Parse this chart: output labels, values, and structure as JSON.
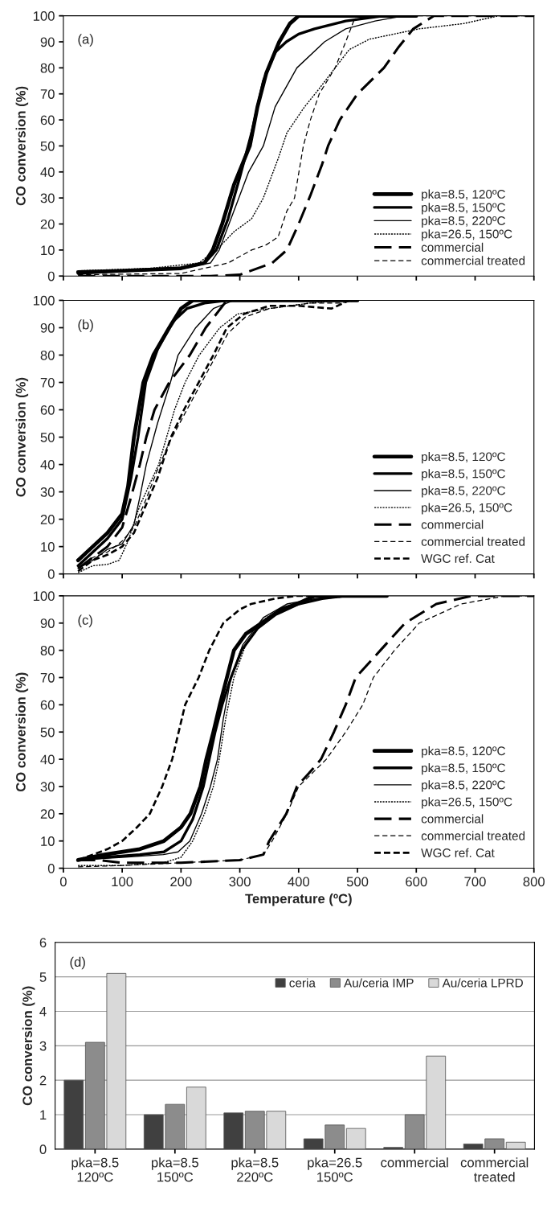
{
  "chart_data": [
    {
      "type": "line",
      "annotations": [
        "(a)"
      ],
      "ylabel": "CO conversion (%)",
      "xlim": [
        0,
        800
      ],
      "xticks": [
        0,
        100,
        200,
        300,
        400,
        500,
        600,
        700,
        800
      ],
      "ylim": [
        0,
        100
      ],
      "yticks": [
        0,
        10,
        20,
        30,
        40,
        50,
        60,
        70,
        80,
        90,
        100
      ],
      "tick_labels": "y",
      "legend": "bottom right",
      "grid": false,
      "series": [
        {
          "name": "pka=8.5, 120ºC",
          "color": "#000000",
          "line_style": "solid",
          "x": [
            25,
            100,
            200,
            240,
            254,
            270,
            290,
            317,
            330,
            345,
            367,
            385,
            400,
            600
          ],
          "values": [
            1.5,
            2,
            3,
            5,
            10,
            20,
            35,
            50,
            65,
            78,
            90,
            97,
            100,
            100
          ]
        },
        {
          "name": "pka=8.5, 150ºC",
          "color": "#000000",
          "line_style": "solid",
          "x": [
            25,
            100,
            200,
            240,
            260,
            280,
            300,
            320,
            340,
            360,
            379,
            400,
            427,
            480,
            545,
            600
          ],
          "values": [
            1,
            2,
            3,
            5,
            10,
            22,
            38,
            55,
            75,
            86,
            90,
            93,
            95,
            98,
            100,
            100
          ]
        },
        {
          "name": "pka=8.5, 220ºC",
          "color": "#000000",
          "line_style": "solid",
          "x": [
            25,
            100,
            200,
            250,
            265,
            290,
            315,
            340,
            360,
            397,
            444,
            480,
            530,
            580
          ],
          "values": [
            1.5,
            2,
            3,
            5,
            10,
            25,
            40,
            50,
            65,
            80,
            90,
            95,
            98,
            100
          ]
        },
        {
          "name": "pka=26.5, 150ºC",
          "color": "#000000",
          "line_style": "dotted",
          "x": [
            25,
            150,
            230,
            260,
            290,
            320,
            340,
            365,
            380,
            410,
            435,
            462,
            486,
            520,
            605,
            680,
            740,
            800
          ],
          "values": [
            2,
            3,
            5,
            10,
            17,
            22,
            30,
            45,
            55,
            65,
            72,
            80,
            87,
            91,
            95,
            97,
            100,
            100
          ]
        },
        {
          "name": "commercial",
          "color": "#000000",
          "line_style": "dashed",
          "x": [
            25,
            250,
            300,
            355,
            380,
            400,
            420,
            440,
            450,
            470,
            500,
            545,
            570,
            595,
            630,
            800
          ],
          "values": [
            0,
            0,
            0.5,
            5,
            10,
            20,
            31,
            43,
            50,
            60,
            70,
            80,
            88,
            95,
            100,
            100
          ]
        },
        {
          "name": "commercial treated",
          "color": "#000000",
          "line_style": "dashed",
          "x": [
            25,
            200,
            280,
            320,
            345,
            365,
            380,
            393,
            408,
            420,
            435,
            462,
            480,
            497,
            800
          ],
          "values": [
            0.5,
            1,
            5,
            10,
            12,
            15,
            25,
            30,
            50,
            60,
            70,
            80,
            90,
            100,
            100
          ]
        }
      ]
    },
    {
      "type": "line",
      "annotations": [
        "(b)"
      ],
      "ylabel": "CO conversion (%)",
      "xlim": [
        0,
        800
      ],
      "xticks": [
        0,
        100,
        200,
        300,
        400,
        500,
        600,
        700,
        800
      ],
      "ylim": [
        0,
        100
      ],
      "yticks": [
        0,
        10,
        20,
        30,
        40,
        50,
        60,
        70,
        80,
        90,
        100
      ],
      "tick_labels": "y",
      "legend": "bottom right",
      "grid": false,
      "series": [
        {
          "name": "pka=8.5, 120ºC",
          "color": "#000000",
          "line_style": "solid",
          "x": [
            25,
            50,
            75,
            100,
            110,
            120,
            136,
            153,
            180,
            200,
            220,
            500
          ],
          "values": [
            5,
            10,
            15,
            22,
            32,
            50,
            70,
            80,
            90,
            97,
            100,
            100
          ]
        },
        {
          "name": "pka=8.5, 150ºC",
          "color": "#000000",
          "line_style": "solid",
          "x": [
            25,
            50,
            75,
            100,
            115,
            127,
            140,
            160,
            185,
            210,
            240,
            280,
            500
          ],
          "values": [
            3,
            8,
            13,
            20,
            35,
            50,
            70,
            82,
            92,
            97,
            99,
            100,
            100
          ]
        },
        {
          "name": "pka=8.5, 220ºC",
          "color": "#000000",
          "line_style": "solid",
          "x": [
            25,
            50,
            75,
            100,
            120,
            130,
            141,
            160,
            182,
            195,
            225,
            255,
            290,
            500
          ],
          "values": [
            2,
            5,
            9,
            11,
            18,
            28,
            40,
            55,
            70,
            80,
            90,
            97,
            100,
            100
          ]
        },
        {
          "name": "pka=26.5, 150ºC",
          "color": "#000000",
          "line_style": "dotted",
          "x": [
            25,
            50,
            75,
            95,
            110,
            130,
            162,
            189,
            207,
            231,
            266,
            296,
            350,
            420,
            470,
            500
          ],
          "values": [
            0.5,
            3,
            3.5,
            5,
            12,
            25,
            40,
            60,
            70,
            80,
            90,
            95,
            97,
            99,
            100,
            100
          ]
        },
        {
          "name": "commercial",
          "color": "#000000",
          "line_style": "dashed",
          "x": [
            25,
            50,
            75,
            100,
            115,
            130,
            141,
            155,
            180,
            215,
            242,
            278,
            500
          ],
          "values": [
            2,
            6,
            10,
            17,
            28,
            40,
            50,
            60,
            70,
            80,
            90,
            100,
            100
          ]
        },
        {
          "name": "commercial treated",
          "color": "#000000",
          "line_style": "dashed",
          "x": [
            25,
            50,
            75,
            100,
            120,
            140,
            160,
            180,
            205,
            230,
            255,
            280,
            310,
            350,
            420,
            470,
            500
          ],
          "values": [
            2,
            6,
            8,
            12,
            17,
            27,
            38,
            48,
            58,
            68,
            78,
            88,
            94,
            97,
            99,
            99,
            100
          ]
        },
        {
          "name": "WGC ref. Cat",
          "color": "#000000",
          "line_style": "dashed",
          "x": [
            25,
            50,
            75,
            100,
            120,
            140,
            160,
            183,
            205,
            230,
            255,
            278,
            307,
            350,
            400,
            456,
            486,
            500
          ],
          "values": [
            1,
            5,
            7,
            10,
            15,
            25,
            35,
            50,
            60,
            70,
            80,
            90,
            95,
            98,
            98,
            97,
            100,
            100
          ]
        }
      ]
    },
    {
      "type": "line",
      "annotations": [
        "(c)"
      ],
      "xlabel": "Temperature (ºC)",
      "ylabel": "CO conversion (%)",
      "xlim": [
        0,
        800
      ],
      "xticks": [
        0,
        100,
        200,
        300,
        400,
        500,
        600,
        700,
        800
      ],
      "ylim": [
        0,
        100
      ],
      "yticks": [
        0,
        10,
        20,
        30,
        40,
        50,
        60,
        70,
        80,
        90,
        100
      ],
      "legend": "bottom right",
      "grid": false,
      "series": [
        {
          "name": "pka=8.5, 120ºC",
          "color": "#000000",
          "line_style": "solid",
          "x": [
            25,
            70,
            130,
            171,
            200,
            216,
            233,
            243,
            255,
            266,
            278,
            290,
            310,
            337,
            370,
            397,
            427,
            550
          ],
          "values": [
            3,
            5,
            7,
            10,
            15,
            20,
            30,
            40,
            50,
            60,
            70,
            80,
            86,
            90,
            95,
            97,
            100,
            100
          ]
        },
        {
          "name": "pka=8.5, 150ºC",
          "color": "#000000",
          "line_style": "solid",
          "x": [
            25,
            70,
            130,
            171,
            200,
            220,
            238,
            248,
            258,
            270,
            285,
            303,
            330,
            360,
            400,
            440,
            480,
            550
          ],
          "values": [
            3,
            4,
            5,
            6,
            10,
            18,
            30,
            40,
            50,
            60,
            70,
            80,
            88,
            93,
            97,
            99,
            100,
            100
          ]
        },
        {
          "name": "pka=8.5, 220ºC",
          "color": "#000000",
          "line_style": "solid",
          "x": [
            25,
            100,
            170,
            195,
            215,
            235,
            250,
            262,
            272,
            285,
            305,
            340,
            380,
            430,
            480,
            550
          ],
          "values": [
            3,
            4,
            5,
            6,
            10,
            20,
            30,
            40,
            55,
            70,
            82,
            92,
            97,
            99,
            100,
            100
          ]
        },
        {
          "name": "pka=26.5, 150ºC",
          "color": "#000000",
          "line_style": "dotted",
          "x": [
            25,
            100,
            170,
            200,
            220,
            240,
            255,
            265,
            276,
            290,
            310,
            345,
            390,
            440,
            500,
            550
          ],
          "values": [
            1,
            1,
            2,
            4,
            10,
            20,
            30,
            40,
            55,
            70,
            82,
            92,
            97,
            99,
            100,
            100
          ]
        },
        {
          "name": "commercial",
          "color": "#000000",
          "line_style": "dashed",
          "x": [
            25,
            60,
            100,
            200,
            300,
            340,
            350,
            379,
            397,
            418,
            438,
            460,
            480,
            497,
            539,
            581,
            634,
            694,
            800
          ],
          "values": [
            3,
            3,
            2,
            2,
            3,
            5,
            10,
            20,
            30,
            35,
            40,
            50,
            60,
            70,
            80,
            90,
            97,
            100,
            100
          ]
        },
        {
          "name": "commercial treated",
          "color": "#000000",
          "line_style": "dashed",
          "x": [
            25,
            100,
            200,
            300,
            340,
            355,
            380,
            400,
            447,
            480,
            509,
            527,
            563,
            605,
            676,
            752,
            800
          ],
          "values": [
            0.5,
            1,
            2,
            3,
            5,
            10,
            20,
            30,
            40,
            50,
            60,
            70,
            80,
            90,
            97,
            100,
            100
          ]
        },
        {
          "name": "WGC ref. Cat",
          "color": "#000000",
          "line_style": "dashed",
          "x": [
            25,
            50,
            75,
            100,
            125,
            147,
            168,
            185,
            207,
            230,
            248,
            272,
            300,
            319,
            360,
            397,
            550
          ],
          "values": [
            3,
            5,
            7,
            10,
            15,
            20,
            30,
            40,
            60,
            70,
            80,
            90,
            95,
            97,
            99,
            100,
            100
          ]
        }
      ]
    },
    {
      "type": "bar",
      "annotations": [
        "(d)"
      ],
      "ylabel": "CO conversion (%)",
      "ylim": [
        0,
        6
      ],
      "yticks": [
        0,
        1,
        2,
        3,
        4,
        5,
        6
      ],
      "grid": "y",
      "legend": "top right",
      "categories": [
        "pka=8.5\n120ºC",
        "pka=8.5\n150ºC",
        "pka=8.5\n220ºC",
        "pka=26.5\n150ºC",
        "commercial",
        "commercial\ntreated"
      ],
      "series": [
        {
          "name": "ceria",
          "color": "#404040",
          "values": [
            2.0,
            1.0,
            1.05,
            0.3,
            0.05,
            0.15
          ]
        },
        {
          "name": "Au/ceria IMP",
          "color": "#8c8c8c",
          "values": [
            3.1,
            1.3,
            1.1,
            0.7,
            1.0,
            0.3
          ]
        },
        {
          "name": "Au/ceria LPRD",
          "color": "#d9d9d9",
          "values": [
            5.1,
            1.8,
            1.1,
            0.6,
            2.7,
            0.2
          ]
        }
      ]
    }
  ]
}
